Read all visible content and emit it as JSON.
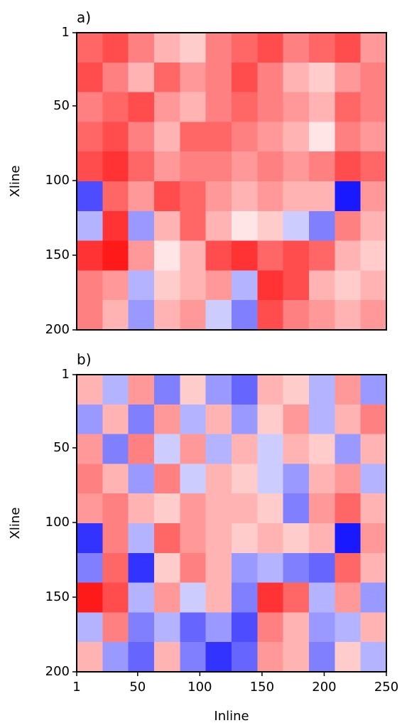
{
  "chart_data": [
    {
      "type": "heatmap",
      "title": "a)",
      "ylabel": "Xline",
      "colormap": "bwr",
      "zlim": [
        -1,
        1
      ],
      "xlim": [
        1,
        250
      ],
      "ylim": [
        1,
        200
      ],
      "yticks": [
        1,
        50,
        100,
        150,
        200
      ],
      "z": [
        [
          0.6,
          0.7,
          0.5,
          0.3,
          0.2,
          0.5,
          0.6,
          0.7,
          0.5,
          0.6,
          0.7,
          0.4
        ],
        [
          0.7,
          0.5,
          0.3,
          0.6,
          0.4,
          0.5,
          0.7,
          0.5,
          0.3,
          0.2,
          0.4,
          0.5
        ],
        [
          0.5,
          0.6,
          0.7,
          0.4,
          0.3,
          0.5,
          0.6,
          0.5,
          0.4,
          0.3,
          0.6,
          0.5
        ],
        [
          0.6,
          0.7,
          0.5,
          0.3,
          0.6,
          0.6,
          0.5,
          0.4,
          0.3,
          0.1,
          0.5,
          0.4
        ],
        [
          0.7,
          0.8,
          0.6,
          0.4,
          0.5,
          0.5,
          0.4,
          0.5,
          0.4,
          0.5,
          0.7,
          0.6
        ],
        [
          -0.7,
          0.6,
          0.4,
          0.7,
          0.6,
          0.4,
          0.3,
          0.4,
          0.3,
          0.3,
          -0.9,
          0.4
        ],
        [
          -0.3,
          0.8,
          -0.4,
          0.3,
          0.6,
          0.3,
          0.1,
          0.2,
          -0.2,
          -0.5,
          0.5,
          0.3
        ],
        [
          0.8,
          0.9,
          0.4,
          0.1,
          0.3,
          0.7,
          0.8,
          0.6,
          0.7,
          0.6,
          0.3,
          0.2
        ],
        [
          0.5,
          0.4,
          -0.3,
          0.2,
          0.3,
          0.4,
          -0.3,
          0.8,
          0.7,
          0.3,
          0.2,
          0.3
        ],
        [
          0.5,
          0.3,
          -0.4,
          0.3,
          0.4,
          -0.2,
          -0.5,
          0.7,
          0.5,
          0.4,
          0.3,
          0.4
        ]
      ]
    },
    {
      "type": "heatmap",
      "title": "b)",
      "ylabel": "Xline",
      "xlabel": "Inline",
      "colormap": "bwr",
      "zlim": [
        -1,
        1
      ],
      "xlim": [
        1,
        250
      ],
      "ylim": [
        1,
        200
      ],
      "yticks": [
        1,
        50,
        100,
        150,
        200
      ],
      "xticks": [
        1,
        50,
        100,
        150,
        200,
        250
      ],
      "z": [
        [
          0.3,
          -0.3,
          0.4,
          -0.5,
          0.2,
          -0.4,
          -0.6,
          0.3,
          0.2,
          -0.3,
          0.4,
          -0.4
        ],
        [
          -0.4,
          0.3,
          -0.5,
          0.4,
          -0.3,
          0.3,
          -0.4,
          0.2,
          0.4,
          -0.3,
          0.3,
          0.5
        ],
        [
          0.4,
          -0.5,
          0.5,
          -0.2,
          0.4,
          -0.3,
          0.3,
          -0.2,
          0.3,
          0.2,
          -0.4,
          0.3
        ],
        [
          0.5,
          0.3,
          -0.4,
          0.5,
          -0.2,
          0.3,
          0.2,
          -0.2,
          -0.4,
          0.3,
          0.4,
          -0.3
        ],
        [
          0.4,
          0.5,
          0.3,
          0.2,
          0.4,
          0.3,
          0.3,
          0.2,
          -0.5,
          0.4,
          0.6,
          0.3
        ],
        [
          -0.8,
          0.5,
          -0.3,
          0.6,
          0.4,
          0.3,
          0.2,
          0.3,
          0.2,
          0.3,
          -0.9,
          0.4
        ],
        [
          -0.5,
          0.6,
          -0.8,
          0.2,
          0.5,
          0.3,
          -0.4,
          -0.3,
          -0.5,
          -0.6,
          0.6,
          0.3
        ],
        [
          0.9,
          0.7,
          -0.3,
          0.4,
          -0.2,
          0.3,
          -0.5,
          0.8,
          0.6,
          -0.3,
          0.4,
          -0.4
        ],
        [
          -0.3,
          0.5,
          -0.5,
          -0.3,
          -0.6,
          -0.4,
          -0.7,
          0.5,
          0.3,
          -0.4,
          -0.3,
          0.3
        ],
        [
          0.3,
          -0.4,
          -0.6,
          0.3,
          -0.5,
          -0.8,
          -0.6,
          0.4,
          0.3,
          -0.5,
          0.2,
          -0.3
        ]
      ]
    }
  ]
}
